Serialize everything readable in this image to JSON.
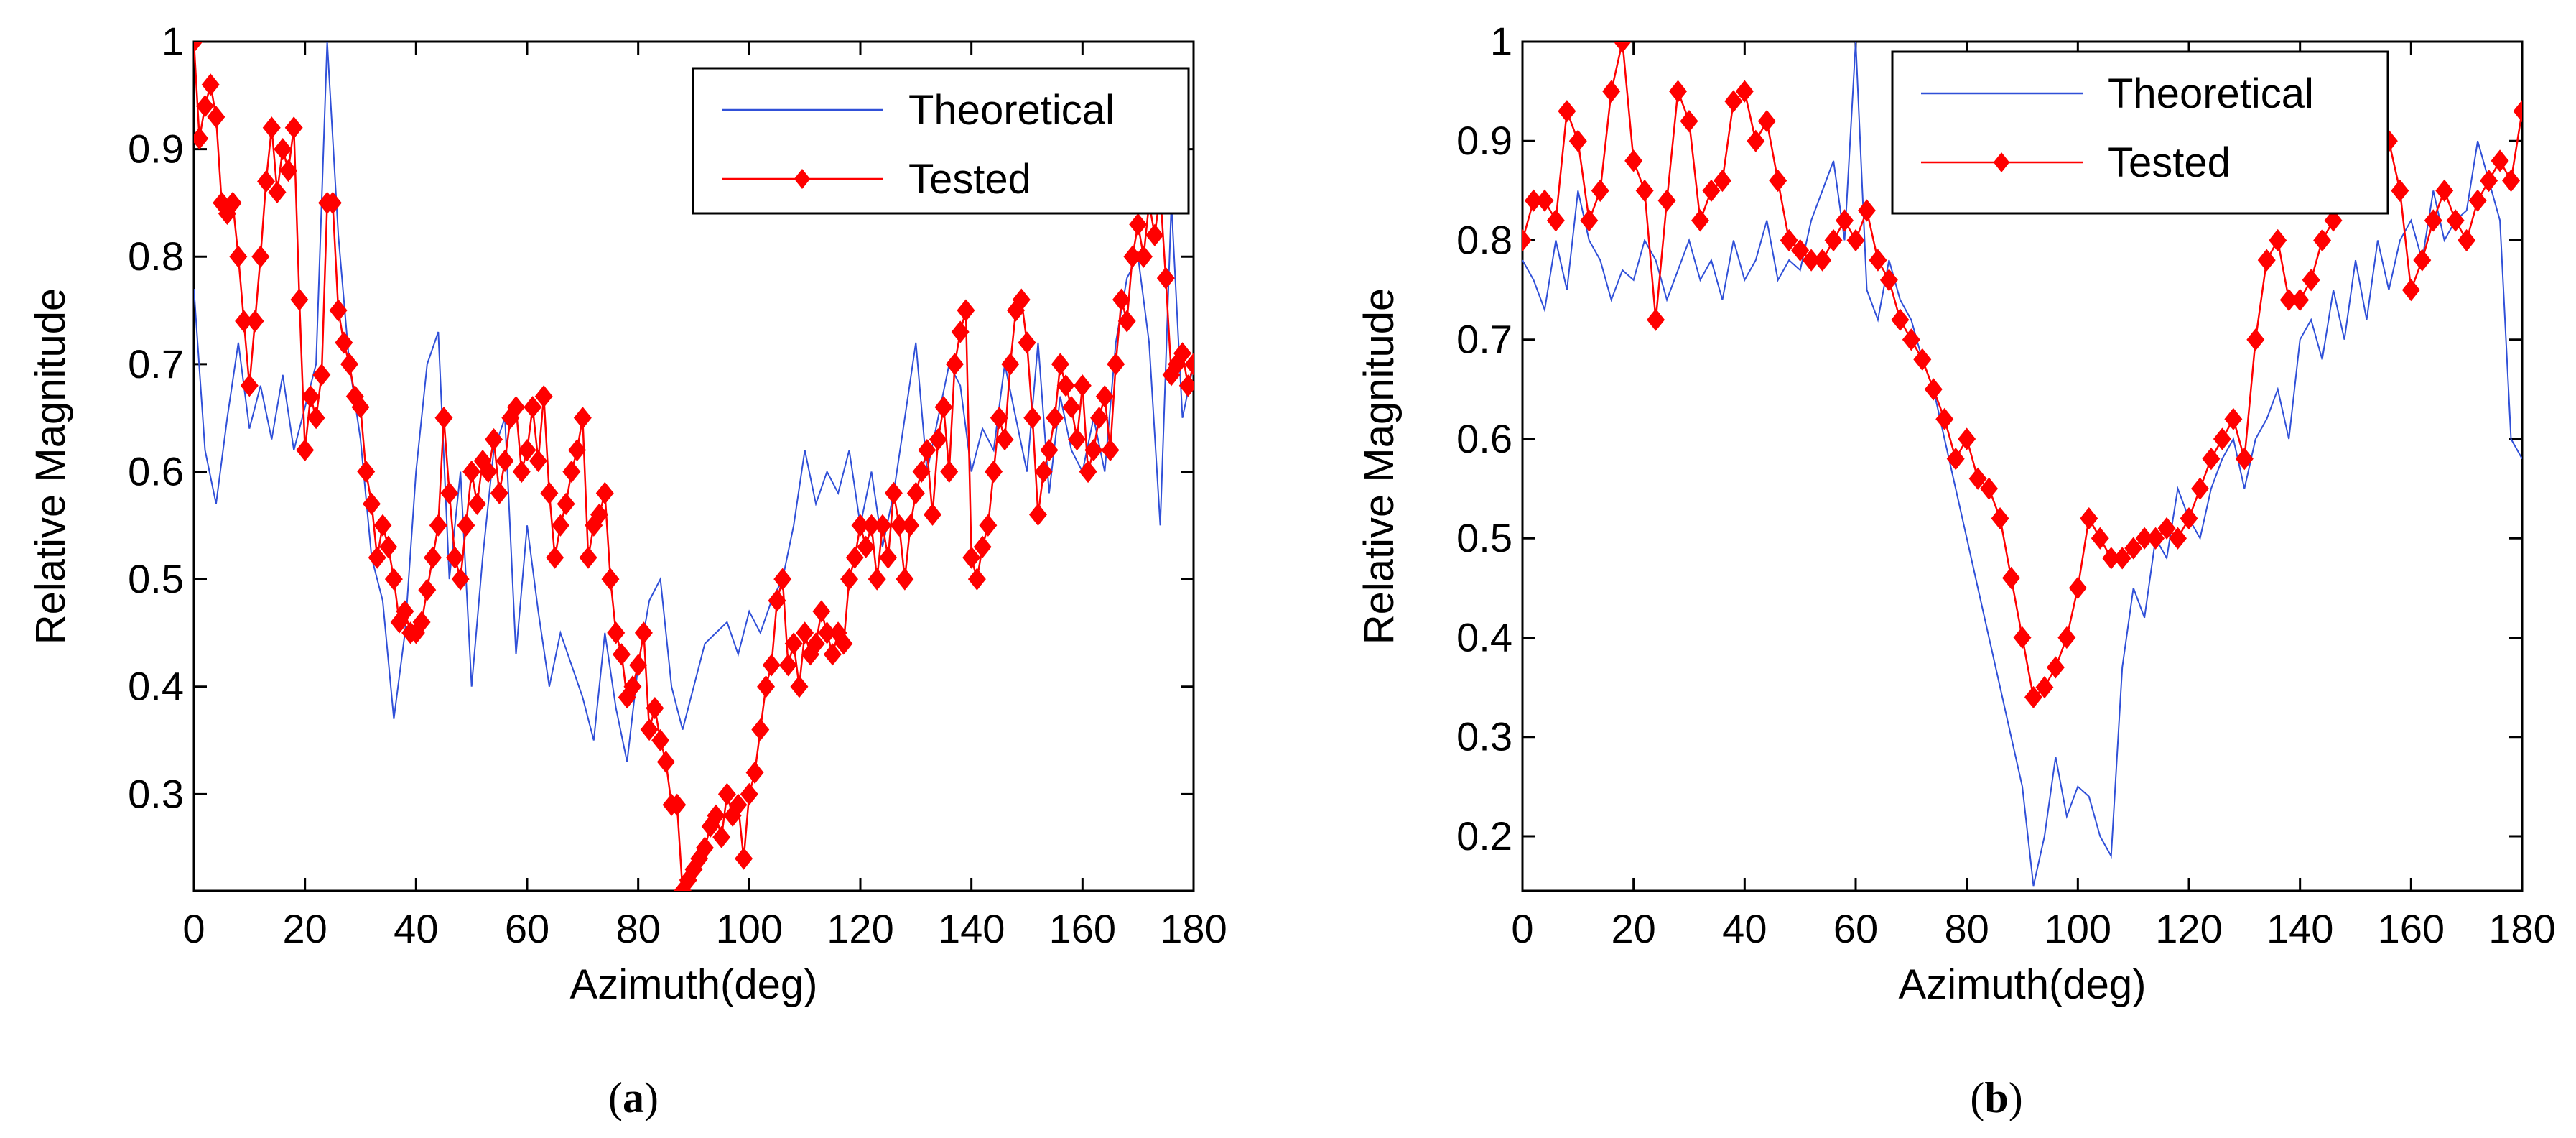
{
  "chart_data": [
    {
      "panel_label": "(a)",
      "panel_letter": "a",
      "type": "line",
      "xlabel": "Azimuth(deg)",
      "ylabel": "Relative Magnitude",
      "xlim": [
        0,
        180
      ],
      "ylim": [
        0.21,
        1.0
      ],
      "xticks": [
        0,
        20,
        40,
        60,
        80,
        100,
        120,
        140,
        160,
        180
      ],
      "yticks": [
        0.3,
        0.4,
        0.5,
        0.6,
        0.7,
        0.8,
        0.9,
        1
      ],
      "grid": false,
      "legend": "top-right",
      "colors": {
        "theoretical": "#3050d8",
        "tested": "#ff0000"
      },
      "series": [
        {
          "name": "Theoretical",
          "marker": "none",
          "x": [
            0,
            2,
            4,
            6,
            8,
            10,
            12,
            14,
            16,
            18,
            20,
            22,
            24,
            26,
            28,
            30,
            32,
            34,
            36,
            38,
            40,
            42,
            44,
            46,
            48,
            50,
            52,
            54,
            56,
            58,
            60,
            62,
            64,
            66,
            68,
            70,
            72,
            74,
            76,
            78,
            80,
            82,
            84,
            86,
            88,
            90,
            92,
            94,
            96,
            98,
            100,
            102,
            104,
            106,
            108,
            110,
            112,
            114,
            116,
            118,
            120,
            122,
            124,
            126,
            128,
            130,
            132,
            134,
            136,
            138,
            140,
            142,
            144,
            146,
            148,
            150,
            152,
            154,
            156,
            158,
            160,
            162,
            164,
            166,
            168,
            170,
            172,
            174,
            176,
            178,
            180
          ],
          "values": [
            0.77,
            0.62,
            0.57,
            0.65,
            0.72,
            0.64,
            0.68,
            0.63,
            0.69,
            0.62,
            0.66,
            0.7,
            1.0,
            0.82,
            0.7,
            0.63,
            0.52,
            0.48,
            0.37,
            0.45,
            0.6,
            0.7,
            0.73,
            0.5,
            0.6,
            0.4,
            0.52,
            0.62,
            0.65,
            0.43,
            0.55,
            0.47,
            0.4,
            0.45,
            0.42,
            0.39,
            0.35,
            0.45,
            0.38,
            0.33,
            0.42,
            0.48,
            0.5,
            0.4,
            0.36,
            0.4,
            0.44,
            0.45,
            0.46,
            0.43,
            0.47,
            0.45,
            0.48,
            0.5,
            0.55,
            0.62,
            0.57,
            0.6,
            0.58,
            0.62,
            0.55,
            0.6,
            0.53,
            0.58,
            0.65,
            0.72,
            0.6,
            0.65,
            0.7,
            0.68,
            0.6,
            0.64,
            0.62,
            0.7,
            0.65,
            0.6,
            0.72,
            0.58,
            0.67,
            0.62,
            0.6,
            0.65,
            0.6,
            0.72,
            0.78,
            0.8,
            0.72,
            0.55,
            0.85,
            0.65,
            0.7
          ]
        },
        {
          "name": "Tested",
          "marker": "filled-diamond",
          "x": [
            0,
            1,
            2,
            3,
            4,
            5,
            6,
            7,
            8,
            9,
            10,
            11,
            12,
            13,
            14,
            15,
            16,
            17,
            18,
            19,
            20,
            21,
            22,
            23,
            24,
            25,
            26,
            27,
            28,
            29,
            30,
            31,
            32,
            33,
            34,
            35,
            36,
            37,
            38,
            39,
            40,
            41,
            42,
            43,
            44,
            45,
            46,
            47,
            48,
            49,
            50,
            51,
            52,
            53,
            54,
            55,
            56,
            57,
            58,
            59,
            60,
            61,
            62,
            63,
            64,
            65,
            66,
            67,
            68,
            69,
            70,
            71,
            72,
            73,
            74,
            75,
            76,
            77,
            78,
            79,
            80,
            81,
            82,
            83,
            84,
            85,
            86,
            87,
            88,
            89,
            90,
            91,
            92,
            93,
            94,
            95,
            96,
            97,
            98,
            99,
            100,
            101,
            102,
            103,
            104,
            105,
            106,
            107,
            108,
            109,
            110,
            111,
            112,
            113,
            114,
            115,
            116,
            117,
            118,
            119,
            120,
            121,
            122,
            123,
            124,
            125,
            126,
            127,
            128,
            129,
            130,
            131,
            132,
            133,
            134,
            135,
            136,
            137,
            138,
            139,
            140,
            141,
            142,
            143,
            144,
            145,
            146,
            147,
            148,
            149,
            150,
            151,
            152,
            153,
            154,
            155,
            156,
            157,
            158,
            159,
            160,
            161,
            162,
            163,
            164,
            165,
            166,
            167,
            168,
            169,
            170,
            171,
            172,
            173,
            174,
            175,
            176,
            177,
            178,
            179,
            180
          ],
          "values": [
            1.0,
            0.91,
            0.94,
            0.96,
            0.93,
            0.85,
            0.84,
            0.85,
            0.8,
            0.74,
            0.68,
            0.74,
            0.8,
            0.87,
            0.92,
            0.86,
            0.9,
            0.88,
            0.92,
            0.76,
            0.62,
            0.67,
            0.65,
            0.69,
            0.85,
            0.85,
            0.75,
            0.72,
            0.7,
            0.67,
            0.66,
            0.6,
            0.57,
            0.52,
            0.55,
            0.53,
            0.5,
            0.46,
            0.47,
            0.45,
            0.45,
            0.46,
            0.49,
            0.52,
            0.55,
            0.65,
            0.58,
            0.52,
            0.5,
            0.55,
            0.6,
            0.57,
            0.61,
            0.6,
            0.63,
            0.58,
            0.61,
            0.65,
            0.66,
            0.6,
            0.62,
            0.66,
            0.61,
            0.67,
            0.58,
            0.52,
            0.55,
            0.57,
            0.6,
            0.62,
            0.65,
            0.52,
            0.55,
            0.56,
            0.58,
            0.5,
            0.45,
            0.43,
            0.39,
            0.4,
            0.42,
            0.45,
            0.36,
            0.38,
            0.35,
            0.33,
            0.29,
            0.29,
            0.21,
            0.22,
            0.23,
            0.24,
            0.25,
            0.27,
            0.28,
            0.26,
            0.3,
            0.28,
            0.29,
            0.24,
            0.3,
            0.32,
            0.36,
            0.4,
            0.42,
            0.48,
            0.5,
            0.42,
            0.44,
            0.4,
            0.45,
            0.43,
            0.44,
            0.47,
            0.45,
            0.43,
            0.45,
            0.44,
            0.5,
            0.52,
            0.55,
            0.53,
            0.55,
            0.5,
            0.55,
            0.52,
            0.58,
            0.55,
            0.5,
            0.55,
            0.58,
            0.6,
            0.62,
            0.56,
            0.63,
            0.66,
            0.6,
            0.7,
            0.73,
            0.75,
            0.52,
            0.5,
            0.53,
            0.55,
            0.6,
            0.65,
            0.63,
            0.7,
            0.75,
            0.76,
            0.72,
            0.65,
            0.56,
            0.6,
            0.62,
            0.65,
            0.7,
            0.68,
            0.66,
            0.63,
            0.68,
            0.6,
            0.62,
            0.65,
            0.67,
            0.62,
            0.7,
            0.76,
            0.74,
            0.8,
            0.83,
            0.8,
            0.85,
            0.82,
            0.86,
            0.78,
            0.69,
            0.7,
            0.71,
            0.68,
            0.7
          ]
        }
      ]
    },
    {
      "panel_label": "(b)",
      "panel_letter": "b",
      "type": "line",
      "xlabel": "Azimuth(deg)",
      "ylabel": "Relative Magnitude",
      "xlim": [
        0,
        180
      ],
      "ylim": [
        0.145,
        1.0
      ],
      "xticks": [
        0,
        20,
        40,
        60,
        80,
        100,
        120,
        140,
        160,
        180
      ],
      "yticks": [
        0.2,
        0.3,
        0.4,
        0.5,
        0.6,
        0.7,
        0.8,
        0.9,
        1
      ],
      "grid": false,
      "legend": "top-right",
      "colors": {
        "theoretical": "#3050d8",
        "tested": "#ff0000"
      },
      "series": [
        {
          "name": "Theoretical",
          "marker": "none",
          "x": [
            0,
            2,
            4,
            6,
            8,
            10,
            12,
            14,
            16,
            18,
            20,
            22,
            24,
            26,
            28,
            30,
            32,
            34,
            36,
            38,
            40,
            42,
            44,
            46,
            48,
            50,
            52,
            54,
            56,
            58,
            60,
            62,
            64,
            66,
            68,
            70,
            72,
            74,
            76,
            78,
            80,
            82,
            84,
            86,
            88,
            90,
            92,
            94,
            96,
            98,
            100,
            102,
            104,
            106,
            108,
            110,
            112,
            114,
            116,
            118,
            120,
            122,
            124,
            126,
            128,
            130,
            132,
            134,
            136,
            138,
            140,
            142,
            144,
            146,
            148,
            150,
            152,
            154,
            156,
            158,
            160,
            162,
            164,
            166,
            168,
            170,
            172,
            174,
            176,
            178,
            180
          ],
          "values": [
            0.78,
            0.76,
            0.73,
            0.8,
            0.75,
            0.85,
            0.8,
            0.78,
            0.74,
            0.77,
            0.76,
            0.8,
            0.78,
            0.74,
            0.77,
            0.8,
            0.76,
            0.78,
            0.74,
            0.8,
            0.76,
            0.78,
            0.82,
            0.76,
            0.78,
            0.77,
            0.82,
            0.85,
            0.88,
            0.8,
            1.0,
            0.75,
            0.72,
            0.78,
            0.74,
            0.72,
            0.68,
            0.65,
            0.6,
            0.55,
            0.5,
            0.45,
            0.4,
            0.35,
            0.3,
            0.25,
            0.15,
            0.2,
            0.28,
            0.22,
            0.25,
            0.24,
            0.2,
            0.18,
            0.37,
            0.45,
            0.42,
            0.5,
            0.48,
            0.55,
            0.52,
            0.5,
            0.55,
            0.58,
            0.6,
            0.55,
            0.6,
            0.62,
            0.65,
            0.6,
            0.7,
            0.72,
            0.68,
            0.75,
            0.7,
            0.78,
            0.72,
            0.8,
            0.75,
            0.8,
            0.82,
            0.78,
            0.85,
            0.8,
            0.82,
            0.83,
            0.9,
            0.86,
            0.82,
            0.6,
            0.58
          ]
        },
        {
          "name": "Tested",
          "marker": "filled-diamond",
          "x": [
            0,
            2,
            4,
            6,
            8,
            10,
            12,
            14,
            16,
            18,
            20,
            22,
            24,
            26,
            28,
            30,
            32,
            34,
            36,
            38,
            40,
            42,
            44,
            46,
            48,
            50,
            52,
            54,
            56,
            58,
            60,
            62,
            64,
            66,
            68,
            70,
            72,
            74,
            76,
            78,
            80,
            82,
            84,
            86,
            88,
            90,
            92,
            94,
            96,
            98,
            100,
            102,
            104,
            106,
            108,
            110,
            112,
            114,
            116,
            118,
            120,
            122,
            124,
            126,
            128,
            130,
            132,
            134,
            136,
            138,
            140,
            142,
            144,
            146,
            148,
            150,
            152,
            154,
            156,
            158,
            160,
            162,
            164,
            166,
            168,
            170,
            172,
            174,
            176,
            178,
            180
          ],
          "values": [
            0.8,
            0.84,
            0.84,
            0.82,
            0.93,
            0.9,
            0.82,
            0.85,
            0.95,
            1.0,
            0.88,
            0.85,
            0.72,
            0.84,
            0.95,
            0.92,
            0.82,
            0.85,
            0.86,
            0.94,
            0.95,
            0.9,
            0.92,
            0.86,
            0.8,
            0.79,
            0.78,
            0.78,
            0.8,
            0.82,
            0.8,
            0.83,
            0.78,
            0.76,
            0.72,
            0.7,
            0.68,
            0.65,
            0.62,
            0.58,
            0.6,
            0.56,
            0.55,
            0.52,
            0.46,
            0.4,
            0.34,
            0.35,
            0.37,
            0.4,
            0.45,
            0.52,
            0.5,
            0.48,
            0.48,
            0.49,
            0.5,
            0.5,
            0.51,
            0.5,
            0.52,
            0.55,
            0.58,
            0.6,
            0.62,
            0.58,
            0.7,
            0.78,
            0.8,
            0.74,
            0.74,
            0.76,
            0.8,
            0.82,
            0.86,
            0.88,
            0.88,
            0.93,
            0.9,
            0.85,
            0.75,
            0.78,
            0.82,
            0.85,
            0.82,
            0.8,
            0.84,
            0.86,
            0.88,
            0.86,
            0.93
          ]
        }
      ]
    }
  ]
}
